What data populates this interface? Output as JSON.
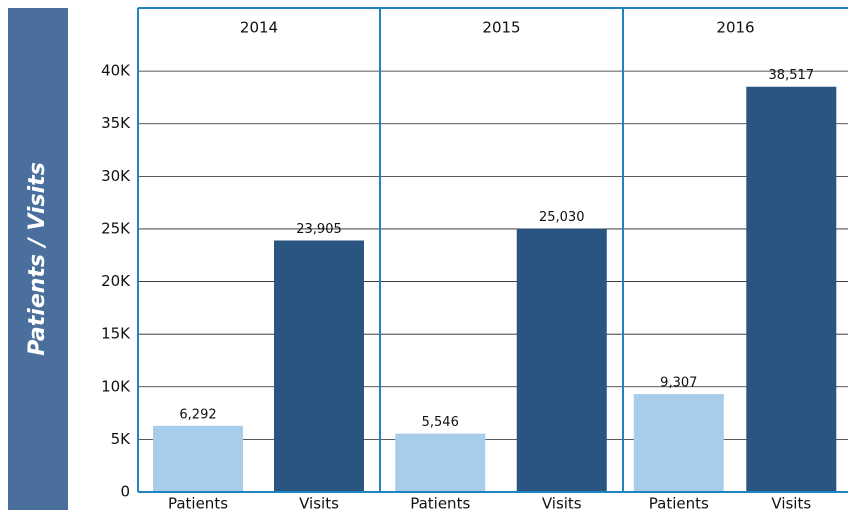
{
  "chart_data": {
    "type": "bar",
    "y_label": "Patients / Visits",
    "colors": [
      "#a8cdea",
      "#2a5580"
    ],
    "panels": [
      {
        "title": "2014",
        "categories": [
          "Patients",
          "Visits"
        ],
        "values": [
          6292,
          23905
        ],
        "value_labels": [
          "6,292",
          "23,905"
        ]
      },
      {
        "title": "2015",
        "categories": [
          "Patients",
          "Visits"
        ],
        "values": [
          5546,
          25030
        ],
        "value_labels": [
          "5,546",
          "25,030"
        ]
      },
      {
        "title": "2016",
        "categories": [
          "Patients",
          "Visits"
        ],
        "values": [
          9307,
          38517
        ],
        "value_labels": [
          "9,307",
          "38,517"
        ]
      }
    ],
    "ylim": [
      0,
      46000
    ],
    "yticks": [
      0,
      {
        "value": 5000,
        "label": "5K"
      },
      {
        "value": 10000,
        "label": "10K"
      },
      {
        "value": 15000,
        "label": "15K"
      },
      {
        "value": 20000,
        "label": "20K"
      },
      {
        "value": 25000,
        "label": "25K"
      },
      {
        "value": 30000,
        "label": "30K"
      },
      {
        "value": 35000,
        "label": "35K"
      },
      {
        "value": 40000,
        "label": "40K"
      }
    ],
    "grid": true
  }
}
